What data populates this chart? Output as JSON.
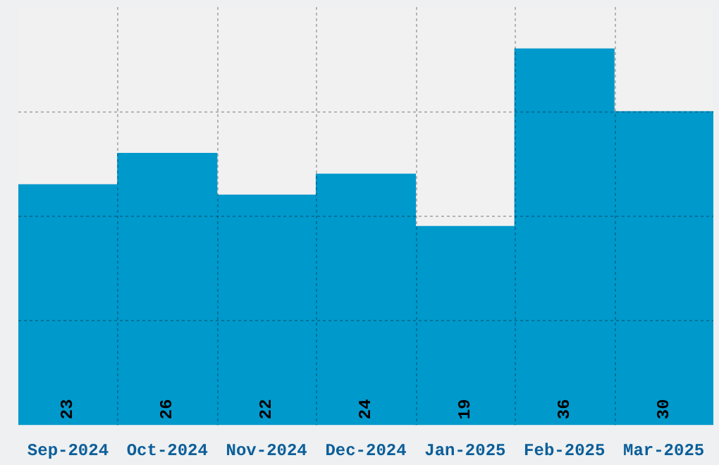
{
  "chart_data": {
    "type": "bar",
    "categories": [
      "Sep-2024",
      "Oct-2024",
      "Nov-2024",
      "Dec-2024",
      "Jan-2025",
      "Feb-2025",
      "Mar-2025"
    ],
    "values": [
      23,
      26,
      22,
      24,
      19,
      36,
      30
    ],
    "color": "#0099cc",
    "ylim": [
      0,
      40
    ],
    "grid": true,
    "tick_labels": "x",
    "data_labels": true
  }
}
